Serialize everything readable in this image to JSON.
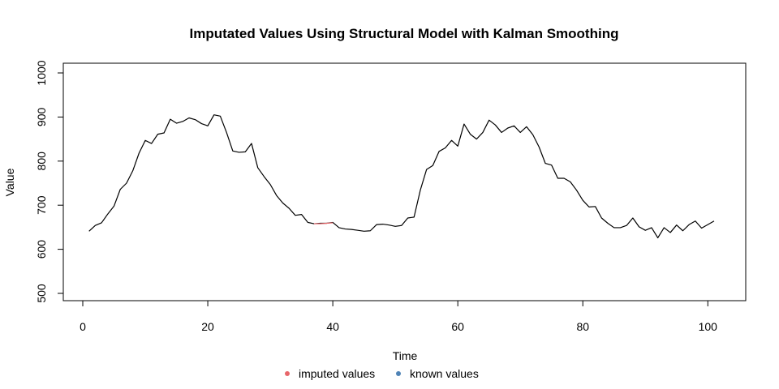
{
  "chart_data": {
    "type": "line",
    "title": "Imputated Values Using Structural Model with Kalman Smoothing",
    "xlabel": "Time",
    "ylabel": "Value",
    "xlim": [
      0,
      101
    ],
    "ylim": [
      500,
      1000
    ],
    "x_ticks": [
      0,
      20,
      40,
      60,
      80,
      100
    ],
    "y_ticks": [
      500,
      600,
      700,
      800,
      900,
      1000
    ],
    "legend": {
      "placement": "bottom-center",
      "entries": [
        {
          "label": "imputed values",
          "color": "#E8666A"
        },
        {
          "label": "known values",
          "color": "#4F83B6"
        }
      ]
    },
    "series": [
      {
        "name": "known values",
        "color": "#000000",
        "x": [
          1,
          2,
          3,
          4,
          5,
          6,
          7,
          8,
          9,
          10,
          11,
          12,
          13,
          14,
          15,
          16,
          17,
          18,
          19,
          20,
          21,
          22,
          23,
          24,
          25,
          26,
          27,
          28,
          29,
          30,
          31,
          32,
          33,
          34,
          35,
          36,
          37,
          38,
          39,
          40,
          41,
          42,
          43,
          44,
          45,
          46,
          47,
          48,
          49,
          50,
          51,
          52,
          53,
          54,
          55,
          56,
          57,
          58,
          59,
          60,
          61,
          62,
          63,
          64,
          65,
          66,
          67,
          68,
          69,
          70,
          71,
          72,
          73,
          74,
          75,
          76,
          77,
          78,
          79,
          80,
          81,
          82,
          83,
          84,
          85,
          86,
          87,
          88,
          89,
          90,
          91,
          92,
          93,
          94,
          95,
          96,
          97,
          98,
          99,
          100,
          101
        ],
        "y": [
          641,
          654,
          660,
          680,
          698,
          736,
          750,
          778,
          818,
          847,
          840,
          861,
          864,
          895,
          886,
          890,
          898,
          894,
          885,
          880,
          905,
          902,
          865,
          823,
          820,
          821,
          840,
          785,
          765,
          747,
          722,
          705,
          693,
          677,
          679,
          661,
          658,
          659,
          659,
          661,
          649,
          646,
          645,
          643,
          641,
          642,
          656,
          657,
          655,
          652,
          654,
          671,
          673,
          734,
          781,
          790,
          822,
          830,
          847,
          834,
          884,
          861,
          850,
          865,
          893,
          882,
          865,
          875,
          880,
          865,
          878,
          860,
          832,
          795,
          791,
          761,
          761,
          753,
          734,
          711,
          696,
          697,
          671,
          659,
          649,
          649,
          654,
          671,
          651,
          643,
          649,
          626,
          649,
          638,
          655,
          642,
          656,
          664,
          648,
          656,
          664
        ]
      },
      {
        "name": "imputed values",
        "color": "#E8666A",
        "x": [
          37,
          38,
          39,
          40
        ],
        "y": [
          658,
          658,
          659,
          660
        ]
      }
    ]
  }
}
